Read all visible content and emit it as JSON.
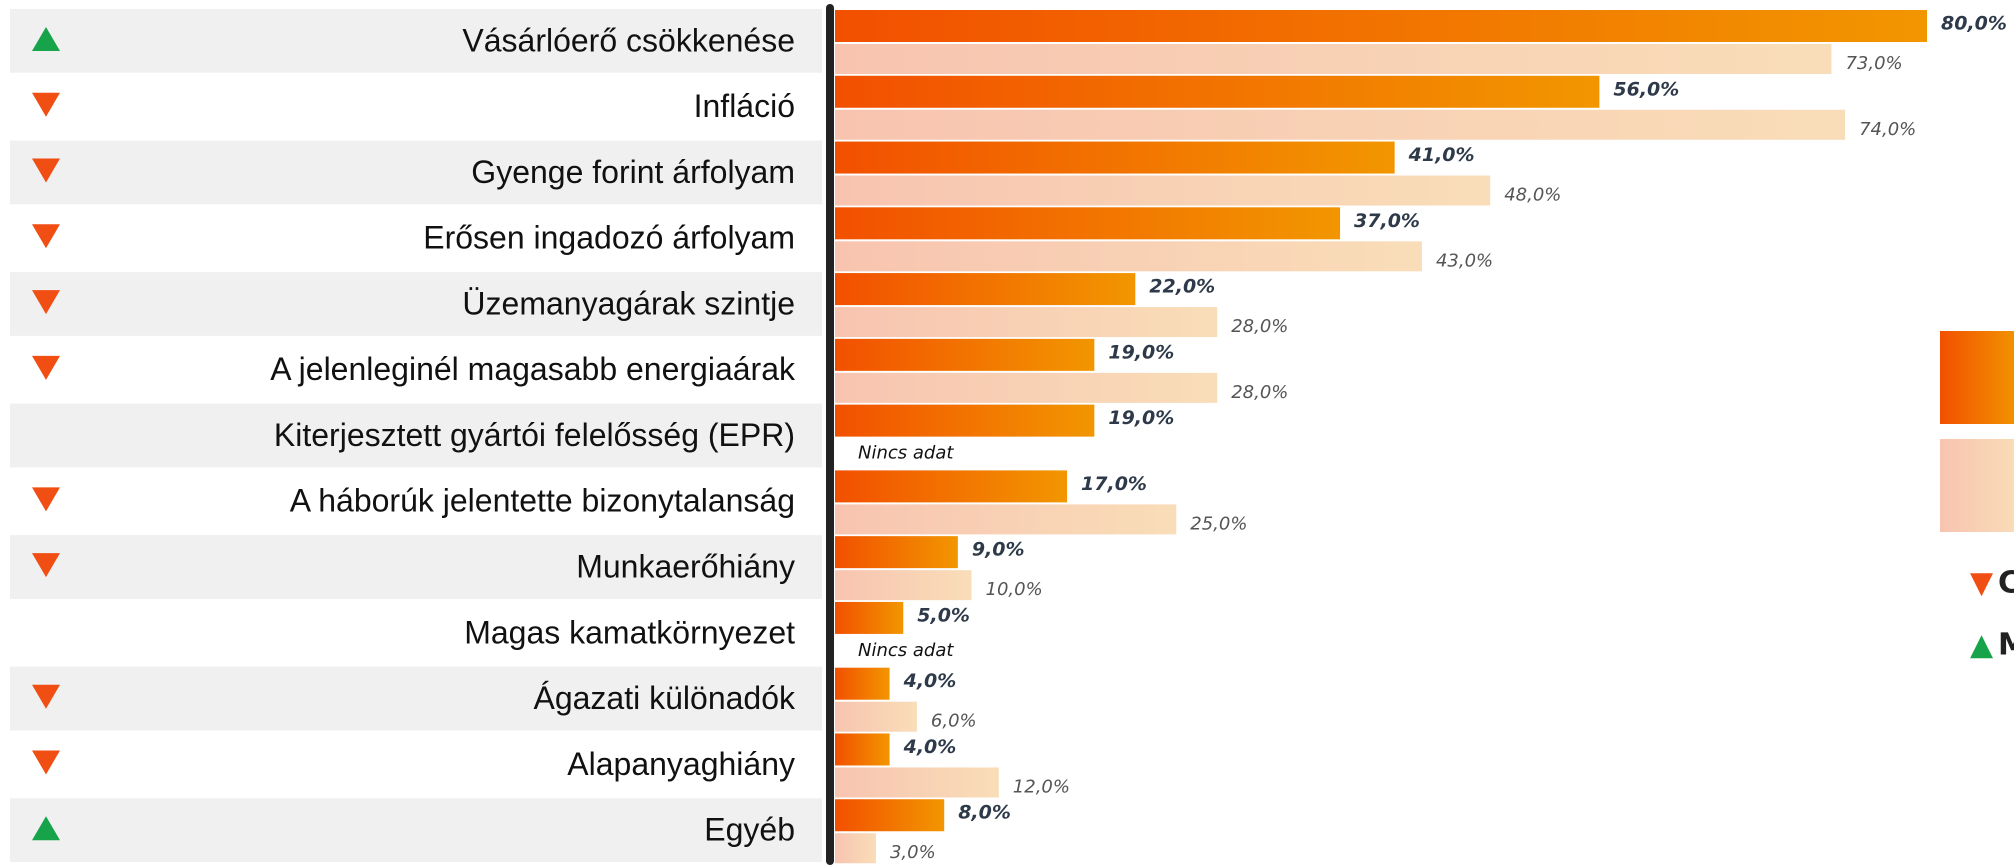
{
  "chart_data": {
    "type": "bar",
    "orientation": "horizontal",
    "categories": [
      "Vásárlóerő csökkenése",
      "Infláció",
      "Gyenge forint árfolyam",
      "Erősen ingadozó árfolyam",
      "Üzemanyagárak szintje",
      "A jelenleginél magasabb energiaárak",
      "Kiterjesztett gyártói felelősség (EPR)",
      "A háborúk jelentette bizonytalanság",
      "Munkaerőhiány",
      "Magas kamatkörnyezet",
      "Ágazati különadók",
      "Alapanyaghiány",
      "Egyéb"
    ],
    "series": [
      {
        "color": "#f25000",
        "color_end": "#f29600",
        "values": [
          80,
          56,
          41,
          37,
          22,
          19,
          19,
          17,
          9,
          5,
          4,
          4,
          8
        ],
        "value_labels": [
          "80,0%",
          "56,0%",
          "41,0%",
          "37,0%",
          "22,0%",
          "19,0%",
          "19,0%",
          "17,0%",
          "9,0%",
          "5,0%",
          "4,0%",
          "4,0%",
          "8,0%"
        ]
      },
      {
        "color": "#f8c4b0",
        "color_end": "#f9ddb8",
        "values": [
          73,
          74,
          48,
          43,
          28,
          28,
          null,
          25,
          10,
          null,
          6,
          12,
          3
        ],
        "value_labels": [
          "73,0%",
          "74,0%",
          "48,0%",
          "43,0%",
          "28,0%",
          "28,0%",
          "Nincs adat",
          "25,0%",
          "10,0%",
          "Nincs adat",
          "6,0%",
          "12,0%",
          "3,0%"
        ]
      }
    ],
    "trend": [
      "up",
      "down",
      "down",
      "down",
      "down",
      "down",
      null,
      "down",
      "down",
      null,
      "down",
      "down",
      "up"
    ],
    "trend_colors": {
      "up": "#17a34a",
      "down": "#f04e12"
    },
    "trend_legend": [
      {
        "symbol": "▼",
        "label": "C"
      },
      {
        "symbol": "▲",
        "label": "M"
      }
    ],
    "xlim": [
      0,
      80
    ]
  }
}
